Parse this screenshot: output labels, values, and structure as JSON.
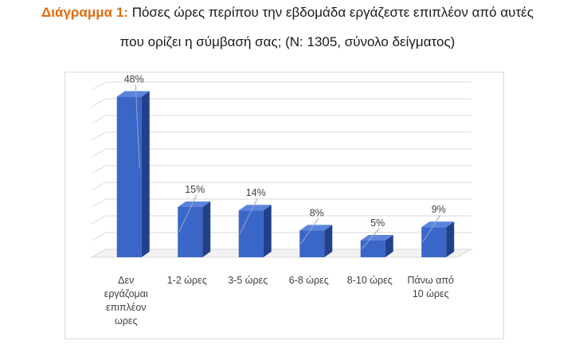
{
  "title": {
    "prefix": "Διάγραμμα 1:",
    "line1": "Πόσες ώρες περίπου την εβδομάδα εργάζεστε επιπλέον από αυτές",
    "line2": "που ορίζει η σύμβασή σας; (N: 1305, σύνολο δείγματος)"
  },
  "colors": {
    "bar_front": "#3a66c8",
    "bar_side": "#22418a",
    "bar_top": "#5b85dd",
    "grid": "#d9d9d9",
    "title_prefix": "#e36c0a"
  },
  "chart_data": {
    "type": "bar",
    "categories": [
      [
        "Δεν",
        "εργάζομαι",
        "επιπλέον",
        "ωρες"
      ],
      [
        "1-2 ώρες"
      ],
      [
        "3-5 ώρες"
      ],
      [
        "6-8 ώρες"
      ],
      [
        "8-10 ώρες"
      ],
      [
        "Πάνω από",
        "10 ώρες"
      ]
    ],
    "values": [
      48,
      15,
      14,
      8,
      5,
      9
    ],
    "data_labels": [
      "48%",
      "15%",
      "14%",
      "8%",
      "5%",
      "9%"
    ],
    "ylim": [
      0,
      50
    ],
    "grid": true,
    "legend": "none",
    "three_d": true
  }
}
